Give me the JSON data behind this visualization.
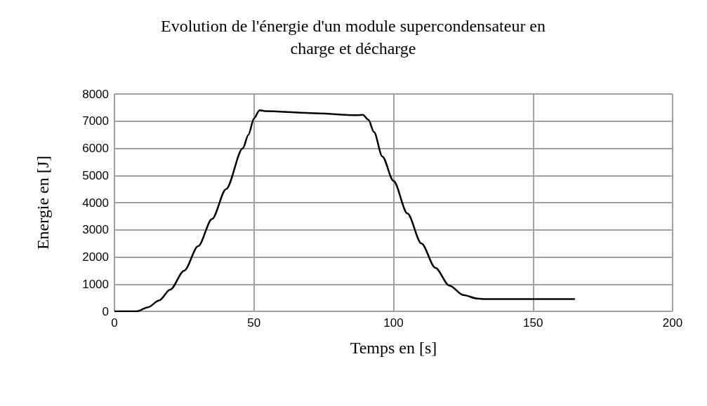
{
  "chart_data": {
    "type": "line",
    "title": "Evolution de l'énergie d'un module supercondensateur en\ncharge et décharge",
    "xlabel": "Temps en [s]",
    "ylabel": "Energie en [J]",
    "x": [
      0,
      8,
      12,
      16,
      20,
      25,
      30,
      35,
      40,
      46,
      48,
      50,
      52,
      54,
      70,
      87,
      89,
      91,
      93,
      96,
      100,
      105,
      110,
      115,
      120,
      125,
      130,
      133,
      150,
      165
    ],
    "series": [
      {
        "color": "#000000",
        "values": [
          0,
          0,
          150,
          400,
          800,
          1500,
          2400,
          3400,
          4500,
          6000,
          6500,
          7100,
          7400,
          7370,
          7300,
          7220,
          7230,
          7050,
          6600,
          5700,
          4800,
          3600,
          2500,
          1600,
          950,
          600,
          470,
          450,
          450,
          450
        ]
      }
    ],
    "xlim": [
      0,
      200
    ],
    "xticks": [
      0,
      50,
      100,
      150,
      200
    ],
    "ylim": [
      0,
      8000
    ],
    "yticks": [
      0,
      1000,
      2000,
      3000,
      4000,
      5000,
      6000,
      7000,
      8000
    ],
    "grid": true,
    "marker": "none",
    "line_style": "solid"
  }
}
